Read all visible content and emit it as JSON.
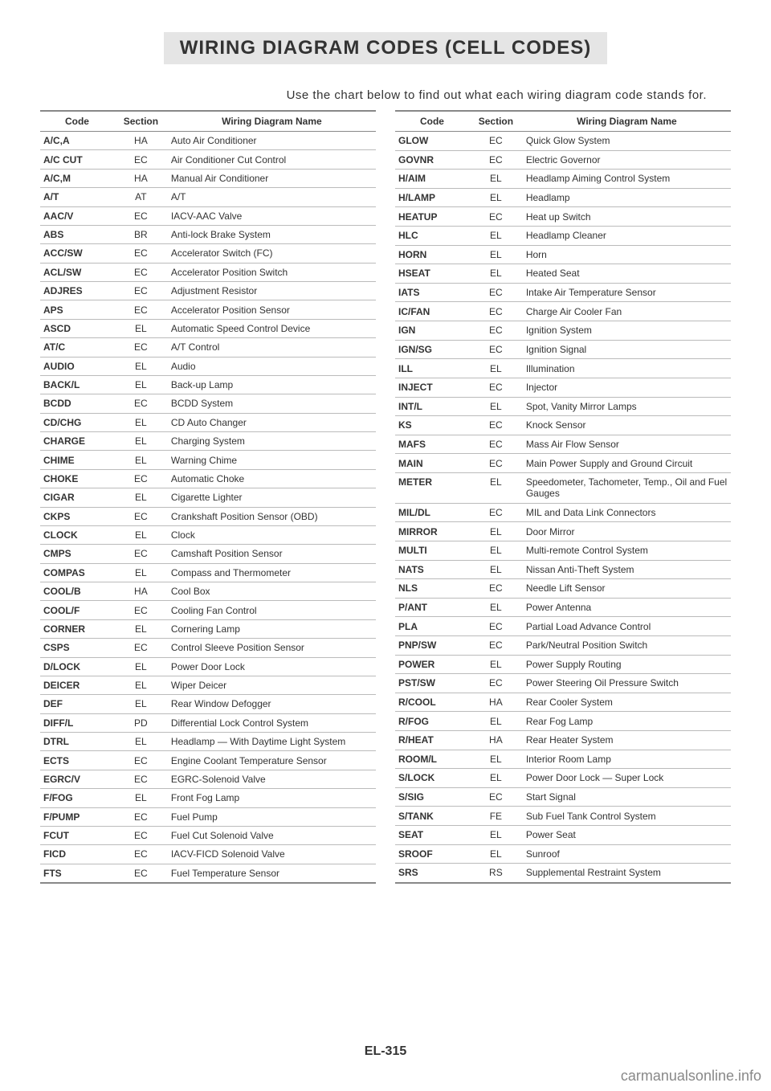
{
  "title": "WIRING DIAGRAM CODES (CELL CODES)",
  "intro": "Use the chart below to find out what each wiring diagram code stands for.",
  "page_number": "EL-315",
  "watermark": "carmanualsonline.info",
  "headers": {
    "code": "Code",
    "section": "Section",
    "name": "Wiring Diagram Name"
  },
  "left_rows": [
    {
      "code": "A/C,A",
      "section": "HA",
      "name": "Auto Air Conditioner"
    },
    {
      "code": "A/C CUT",
      "section": "EC",
      "name": "Air Conditioner Cut Control"
    },
    {
      "code": "A/C,M",
      "section": "HA",
      "name": "Manual Air Conditioner"
    },
    {
      "code": "A/T",
      "section": "AT",
      "name": "A/T"
    },
    {
      "code": "AAC/V",
      "section": "EC",
      "name": "IACV-AAC Valve"
    },
    {
      "code": "ABS",
      "section": "BR",
      "name": "Anti-lock Brake System"
    },
    {
      "code": "ACC/SW",
      "section": "EC",
      "name": "Accelerator Switch (FC)"
    },
    {
      "code": "ACL/SW",
      "section": "EC",
      "name": "Accelerator Position Switch"
    },
    {
      "code": "ADJRES",
      "section": "EC",
      "name": "Adjustment Resistor"
    },
    {
      "code": "APS",
      "section": "EC",
      "name": "Accelerator Position Sensor"
    },
    {
      "code": "ASCD",
      "section": "EL",
      "name": "Automatic Speed Control Device"
    },
    {
      "code": "AT/C",
      "section": "EC",
      "name": "A/T Control"
    },
    {
      "code": "AUDIO",
      "section": "EL",
      "name": "Audio"
    },
    {
      "code": "BACK/L",
      "section": "EL",
      "name": "Back-up Lamp"
    },
    {
      "code": "BCDD",
      "section": "EC",
      "name": "BCDD System"
    },
    {
      "code": "CD/CHG",
      "section": "EL",
      "name": "CD Auto Changer"
    },
    {
      "code": "CHARGE",
      "section": "EL",
      "name": "Charging System"
    },
    {
      "code": "CHIME",
      "section": "EL",
      "name": "Warning Chime"
    },
    {
      "code": "CHOKE",
      "section": "EC",
      "name": "Automatic Choke"
    },
    {
      "code": "CIGAR",
      "section": "EL",
      "name": "Cigarette Lighter"
    },
    {
      "code": "CKPS",
      "section": "EC",
      "name": "Crankshaft Position Sensor (OBD)"
    },
    {
      "code": "CLOCK",
      "section": "EL",
      "name": "Clock"
    },
    {
      "code": "CMPS",
      "section": "EC",
      "name": "Camshaft Position Sensor"
    },
    {
      "code": "COMPAS",
      "section": "EL",
      "name": "Compass and Thermometer"
    },
    {
      "code": "COOL/B",
      "section": "HA",
      "name": "Cool Box"
    },
    {
      "code": "COOL/F",
      "section": "EC",
      "name": "Cooling Fan Control"
    },
    {
      "code": "CORNER",
      "section": "EL",
      "name": "Cornering Lamp"
    },
    {
      "code": "CSPS",
      "section": "EC",
      "name": "Control Sleeve Position Sensor"
    },
    {
      "code": "D/LOCK",
      "section": "EL",
      "name": "Power Door Lock"
    },
    {
      "code": "DEICER",
      "section": "EL",
      "name": "Wiper Deicer"
    },
    {
      "code": "DEF",
      "section": "EL",
      "name": "Rear Window Defogger"
    },
    {
      "code": "DIFF/L",
      "section": "PD",
      "name": "Differential Lock Control System"
    },
    {
      "code": "DTRL",
      "section": "EL",
      "name": "Headlamp — With Daytime Light System"
    },
    {
      "code": "ECTS",
      "section": "EC",
      "name": "Engine Coolant Temperature Sensor"
    },
    {
      "code": "EGRC/V",
      "section": "EC",
      "name": "EGRC-Solenoid Valve"
    },
    {
      "code": "F/FOG",
      "section": "EL",
      "name": "Front Fog Lamp"
    },
    {
      "code": "F/PUMP",
      "section": "EC",
      "name": "Fuel Pump"
    },
    {
      "code": "FCUT",
      "section": "EC",
      "name": "Fuel Cut Solenoid Valve"
    },
    {
      "code": "FICD",
      "section": "EC",
      "name": "IACV-FICD Solenoid Valve"
    },
    {
      "code": "FTS",
      "section": "EC",
      "name": "Fuel Temperature Sensor"
    }
  ],
  "right_rows": [
    {
      "code": "GLOW",
      "section": "EC",
      "name": "Quick Glow System"
    },
    {
      "code": "GOVNR",
      "section": "EC",
      "name": "Electric Governor"
    },
    {
      "code": "H/AIM",
      "section": "EL",
      "name": "Headlamp Aiming Control System"
    },
    {
      "code": "H/LAMP",
      "section": "EL",
      "name": "Headlamp"
    },
    {
      "code": "HEATUP",
      "section": "EC",
      "name": "Heat up Switch"
    },
    {
      "code": "HLC",
      "section": "EL",
      "name": "Headlamp Cleaner"
    },
    {
      "code": "HORN",
      "section": "EL",
      "name": "Horn"
    },
    {
      "code": "HSEAT",
      "section": "EL",
      "name": "Heated Seat"
    },
    {
      "code": "IATS",
      "section": "EC",
      "name": "Intake Air Temperature Sensor"
    },
    {
      "code": "IC/FAN",
      "section": "EC",
      "name": "Charge Air Cooler Fan"
    },
    {
      "code": "IGN",
      "section": "EC",
      "name": "Ignition System"
    },
    {
      "code": "IGN/SG",
      "section": "EC",
      "name": "Ignition Signal"
    },
    {
      "code": "ILL",
      "section": "EL",
      "name": "Illumination"
    },
    {
      "code": "INJECT",
      "section": "EC",
      "name": "Injector"
    },
    {
      "code": "INT/L",
      "section": "EL",
      "name": "Spot, Vanity Mirror Lamps"
    },
    {
      "code": "KS",
      "section": "EC",
      "name": "Knock Sensor"
    },
    {
      "code": "MAFS",
      "section": "EC",
      "name": "Mass Air Flow Sensor"
    },
    {
      "code": "MAIN",
      "section": "EC",
      "name": "Main Power Supply and Ground Circuit"
    },
    {
      "code": "METER",
      "section": "EL",
      "name": "Speedometer, Tachometer, Temp., Oil and Fuel Gauges"
    },
    {
      "code": "MIL/DL",
      "section": "EC",
      "name": "MIL and Data Link Connectors"
    },
    {
      "code": "MIRROR",
      "section": "EL",
      "name": "Door Mirror"
    },
    {
      "code": "MULTI",
      "section": "EL",
      "name": "Multi-remote Control System"
    },
    {
      "code": "NATS",
      "section": "EL",
      "name": "Nissan Anti-Theft System"
    },
    {
      "code": "NLS",
      "section": "EC",
      "name": "Needle Lift Sensor"
    },
    {
      "code": "P/ANT",
      "section": "EL",
      "name": "Power Antenna"
    },
    {
      "code": "PLA",
      "section": "EC",
      "name": "Partial Load Advance Control"
    },
    {
      "code": "PNP/SW",
      "section": "EC",
      "name": "Park/Neutral Position Switch"
    },
    {
      "code": "POWER",
      "section": "EL",
      "name": "Power Supply Routing"
    },
    {
      "code": "PST/SW",
      "section": "EC",
      "name": "Power Steering Oil Pressure Switch"
    },
    {
      "code": "R/COOL",
      "section": "HA",
      "name": "Rear Cooler System"
    },
    {
      "code": "R/FOG",
      "section": "EL",
      "name": "Rear Fog Lamp"
    },
    {
      "code": "R/HEAT",
      "section": "HA",
      "name": "Rear Heater System"
    },
    {
      "code": "ROOM/L",
      "section": "EL",
      "name": "Interior Room Lamp"
    },
    {
      "code": "S/LOCK",
      "section": "EL",
      "name": "Power Door Lock — Super Lock"
    },
    {
      "code": "S/SIG",
      "section": "EC",
      "name": "Start Signal"
    },
    {
      "code": "S/TANK",
      "section": "FE",
      "name": "Sub Fuel Tank Control System"
    },
    {
      "code": "SEAT",
      "section": "EL",
      "name": "Power Seat"
    },
    {
      "code": "SROOF",
      "section": "EL",
      "name": "Sunroof"
    },
    {
      "code": "SRS",
      "section": "RS",
      "name": "Supplemental Restraint System"
    }
  ]
}
